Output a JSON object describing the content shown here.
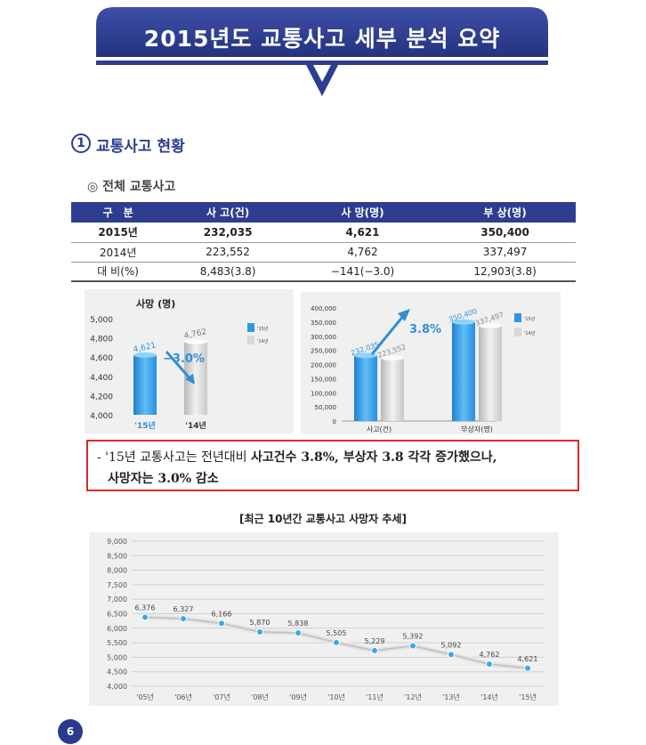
{
  "header": {
    "title": "2015년도 교통사고 세부 분석 요약"
  },
  "section": {
    "number": "1",
    "title": "교통사고 현황",
    "subtitle": "◎ 전체 교통사고"
  },
  "table": {
    "headers": [
      "구　분",
      "사 고(건)",
      "사 망(명)",
      "부 상(명)"
    ],
    "rows": [
      [
        "2015년",
        "232,035",
        "4,621",
        "350,400"
      ],
      [
        "2014년",
        "223,552",
        "4,762",
        "337,497"
      ],
      [
        "대 비(%)",
        "8,483(3.8)",
        "−141(−3.0)",
        "12,903(3.8)"
      ]
    ]
  },
  "chart_data": [
    {
      "type": "bar",
      "title": "사망 (명)",
      "categories": [
        "'15년",
        "'14년"
      ],
      "values": [
        4621,
        4762
      ],
      "value_labels": [
        "4,621",
        "4,762"
      ],
      "ylim": [
        4000,
        5000
      ],
      "yticks": [
        "5,000",
        "4,800",
        "4,600",
        "4,400",
        "4,200",
        "4,000"
      ],
      "legend": [
        "'15년",
        "'14년"
      ],
      "annotation": "−3.0%",
      "colors": {
        "2015": "#2f97e0",
        "2014": "#d8d8d8",
        "annotation": "#2f8fd6"
      }
    },
    {
      "type": "bar",
      "categories": [
        "사고(건)",
        "부상자(명)"
      ],
      "series": [
        {
          "name": "'15년",
          "values": [
            232035,
            350400
          ],
          "labels": [
            "232,035",
            "350,400"
          ]
        },
        {
          "name": "'14년",
          "values": [
            223552,
            337497
          ],
          "labels": [
            "223,552",
            "337,497"
          ]
        }
      ],
      "ylim": [
        0,
        400000
      ],
      "yticks": [
        "400,000",
        "350,000",
        "300,000",
        "250,000",
        "200,000",
        "150,000",
        "100,000",
        "50,000",
        "0"
      ],
      "legend": [
        "'15년",
        "'14년"
      ],
      "annotation": "3.8%"
    },
    {
      "type": "line",
      "title": "[최근 10년간 교통사고 사망자 추세]",
      "x": [
        "'05년",
        "'06년",
        "'07년",
        "'08년",
        "'09년",
        "'10년",
        "'11년",
        "'12년",
        "'13년",
        "'14년",
        "'15년"
      ],
      "values": [
        6376,
        6327,
        6166,
        5870,
        5838,
        5505,
        5229,
        5392,
        5092,
        4762,
        4621
      ],
      "value_labels": [
        "6,376",
        "6,327",
        "6,166",
        "5,870",
        "5,838",
        "5,505",
        "5,229",
        "5,392",
        "5,092",
        "4,762",
        "4,621"
      ],
      "ylim": [
        4000,
        9000
      ],
      "yticks": [
        "9,000",
        "8,500",
        "8,000",
        "7,500",
        "7,000",
        "6,500",
        "6,000",
        "5,500",
        "5,000",
        "4,500",
        "4,000"
      ],
      "grid": true
    }
  ],
  "callout": {
    "prefix": "- '15년 교통사고는 전년대비 ",
    "bold1": "사고건수 3.8%, 부상자 3.8 각각 증가했으나,",
    "bold2": "사망자는 3.0% 감소"
  },
  "page_number": "6"
}
